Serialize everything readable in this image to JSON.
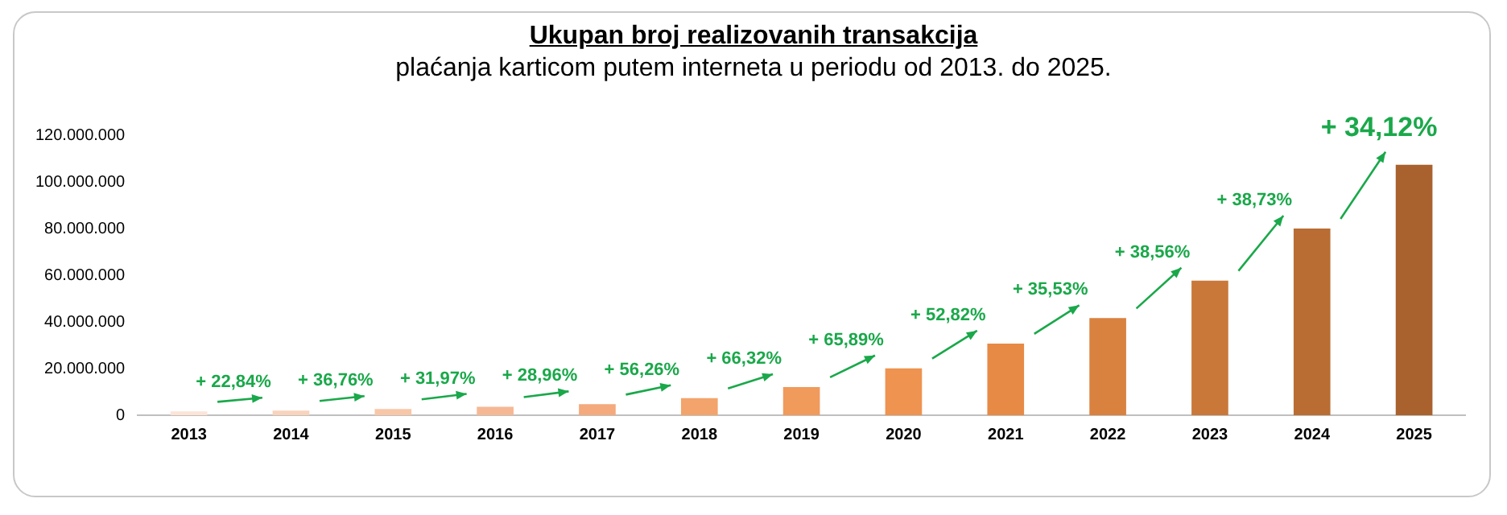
{
  "chart_data": {
    "type": "bar",
    "title": "Ukupan broj realizovanih transakcija",
    "subtitle": "plaćanja karticom putem interneta u periodu od 2013. do 2025.",
    "categories": [
      "2013",
      "2014",
      "2015",
      "2016",
      "2017",
      "2018",
      "2019",
      "2020",
      "2021",
      "2022",
      "2023",
      "2024",
      "2025"
    ],
    "values": [
      1600000,
      2000000,
      2700000,
      3600000,
      4700000,
      7300000,
      12100000,
      20100000,
      30700000,
      41600000,
      57700000,
      80000000,
      107300000
    ],
    "colors": [
      "#fce4d6",
      "#f9d3bc",
      "#f8c7a8",
      "#f6b894",
      "#f4aa7c",
      "#f2a46c",
      "#f09a5c",
      "#ee9350",
      "#e68a46",
      "#d9823f",
      "#c9783a",
      "#b96d33",
      "#a9622d"
    ],
    "ylim": [
      0,
      120000000
    ],
    "yticks": [
      {
        "value": 0,
        "label": "0"
      },
      {
        "value": 20000000,
        "label": "20.000.000"
      },
      {
        "value": 40000000,
        "label": "40.000.000"
      },
      {
        "value": 60000000,
        "label": "60.000.000"
      },
      {
        "value": 80000000,
        "label": "80.000.000"
      },
      {
        "value": 100000000,
        "label": "100.000.000"
      },
      {
        "value": 120000000,
        "label": "120.000.000"
      }
    ],
    "grid": false,
    "legend": false,
    "annotations": [
      "+ 22,84%",
      "+ 36,76%",
      "+ 31,97%",
      "+ 28,96%",
      "+ 56,26%",
      "+ 66,32%",
      "+ 65,89%",
      "+ 52,82%",
      "+ 35,53%",
      "+ 38,56%",
      "+ 38,73%",
      "+ 34,12%"
    ]
  }
}
